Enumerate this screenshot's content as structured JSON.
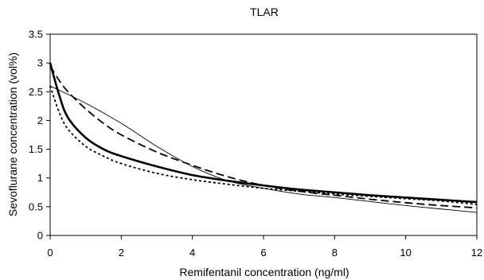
{
  "chart_data": {
    "type": "line",
    "title": "TLAR",
    "xlabel": "Remifentanil concentration (ng/ml)",
    "ylabel": "Sevoflurane concentration (vol%)",
    "xlim": [
      0,
      12
    ],
    "ylim": [
      0,
      3.5
    ],
    "x_ticks": [
      "0",
      "2",
      "4",
      "6",
      "8",
      "10",
      "12"
    ],
    "y_ticks": [
      "0",
      "0.5",
      "1",
      "1.5",
      "2",
      "2.5",
      "3",
      "3.5"
    ],
    "grid": false,
    "legend": "none",
    "series": [
      {
        "style": "thick-solid",
        "x": [
          0,
          0.25,
          0.5,
          1,
          1.5,
          2,
          3,
          4,
          5,
          6,
          7,
          8,
          9,
          10,
          11,
          12
        ],
        "y": [
          3.0,
          2.45,
          2.05,
          1.7,
          1.5,
          1.38,
          1.2,
          1.05,
          0.95,
          0.87,
          0.8,
          0.75,
          0.7,
          0.66,
          0.62,
          0.58
        ]
      },
      {
        "style": "dashed",
        "x": [
          0,
          0.25,
          0.5,
          1,
          1.5,
          2,
          3,
          4,
          5,
          6,
          7,
          8,
          9,
          10,
          11,
          12
        ],
        "y": [
          2.95,
          2.7,
          2.5,
          2.2,
          1.95,
          1.75,
          1.45,
          1.22,
          1.02,
          0.87,
          0.77,
          0.7,
          0.63,
          0.57,
          0.52,
          0.48
        ]
      },
      {
        "style": "dotted",
        "x": [
          0,
          0.25,
          0.5,
          1,
          1.5,
          2,
          3,
          4,
          5,
          6,
          7,
          8,
          9,
          10,
          11,
          12
        ],
        "y": [
          2.6,
          2.15,
          1.85,
          1.55,
          1.38,
          1.25,
          1.08,
          0.97,
          0.89,
          0.82,
          0.77,
          0.72,
          0.68,
          0.64,
          0.6,
          0.54
        ]
      },
      {
        "style": "thin-solid",
        "x": [
          0,
          1,
          2,
          3,
          4,
          5,
          6,
          7,
          8,
          9,
          10,
          11,
          12
        ],
        "y": [
          2.6,
          2.3,
          1.95,
          1.55,
          1.2,
          0.95,
          0.82,
          0.72,
          0.66,
          0.59,
          0.52,
          0.46,
          0.4
        ]
      }
    ]
  }
}
